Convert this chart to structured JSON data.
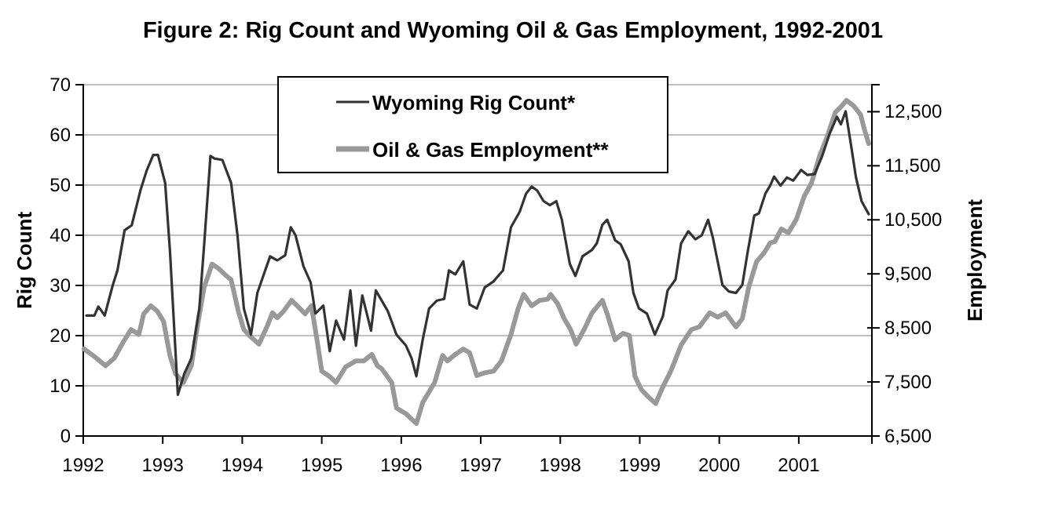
{
  "chart_data": {
    "type": "line",
    "title": "Figure 2: Rig Count and Wyoming Oil & Gas Employment, 1992-2001",
    "ylabel": "Rig Count",
    "y2label": "Employment",
    "xlim": [
      1992,
      2001.92
    ],
    "xticks": [
      1992,
      1993,
      1994,
      1995,
      1996,
      1997,
      1998,
      1999,
      2000,
      2001
    ],
    "ylim": [
      0,
      70
    ],
    "yticks": [
      0,
      10,
      20,
      30,
      40,
      50,
      60,
      70
    ],
    "y2lim": [
      6500,
      13000
    ],
    "y2ticks": [
      {
        "value": 6500,
        "label": "6,500"
      },
      {
        "value": 7500,
        "label": "7,500"
      },
      {
        "value": 8500,
        "label": "8,500"
      },
      {
        "value": 9500,
        "label": "9,500"
      },
      {
        "value": 10500,
        "label": "10,500"
      },
      {
        "value": 11500,
        "label": "11,500"
      },
      {
        "value": 12500,
        "label": "12,500"
      }
    ],
    "grid": "y",
    "legend": "top",
    "series": [
      {
        "name": "Wyoming Rig Count*",
        "color": "#333333",
        "x": [
          1992.04,
          1992.14,
          1992.19,
          1992.27,
          1992.37,
          1992.43,
          1992.52,
          1992.61,
          1992.72,
          1992.8,
          1992.88,
          1992.94,
          1993.03,
          1993.09,
          1993.19,
          1993.27,
          1993.36,
          1993.46,
          1993.52,
          1993.6,
          1993.65,
          1993.75,
          1993.86,
          1993.94,
          1994.02,
          1994.11,
          1994.19,
          1994.35,
          1994.44,
          1994.54,
          1994.61,
          1994.67,
          1994.77,
          1994.86,
          1994.92,
          1995.02,
          1995.1,
          1995.18,
          1995.28,
          1995.36,
          1995.43,
          1995.51,
          1995.62,
          1995.68,
          1995.83,
          1995.94,
          1996.06,
          1996.13,
          1996.19,
          1996.27,
          1996.35,
          1996.45,
          1996.54,
          1996.6,
          1996.68,
          1996.78,
          1996.86,
          1996.95,
          1997.05,
          1997.16,
          1997.28,
          1997.38,
          1997.49,
          1997.57,
          1997.64,
          1997.71,
          1997.79,
          1997.87,
          1997.95,
          1998.02,
          1998.12,
          1998.19,
          1998.28,
          1998.4,
          1998.46,
          1998.53,
          1998.59,
          1998.69,
          1998.76,
          1998.86,
          1998.92,
          1998.99,
          1999.09,
          1999.19,
          1999.29,
          1999.35,
          1999.45,
          1999.52,
          1999.61,
          1999.7,
          1999.78,
          1999.86,
          1999.92,
          1999.98,
          2000.04,
          2000.12,
          2000.21,
          2000.29,
          2000.36,
          2000.44,
          2000.5,
          2000.58,
          2000.64,
          2000.69,
          2000.77,
          2000.85,
          2000.93,
          2001.03,
          2001.11,
          2001.2,
          2001.29,
          2001.39,
          2001.48,
          2001.53,
          2001.59,
          2001.66,
          2001.72,
          2001.79,
          2001.88
        ],
        "values": [
          24,
          24,
          25.8,
          24,
          30,
          33,
          41,
          42,
          49,
          53,
          56,
          56,
          50.4,
          37,
          8.2,
          12.4,
          15.5,
          25.4,
          38,
          55.8,
          55.3,
          55,
          50.4,
          40,
          25.4,
          20.2,
          28.5,
          35.8,
          35,
          36,
          41.6,
          40,
          33.8,
          30.6,
          24.4,
          26,
          16.9,
          23,
          19.2,
          29,
          18,
          28,
          21,
          29,
          24.9,
          20.2,
          18,
          15.5,
          11.9,
          19.2,
          25.4,
          27,
          27.3,
          33,
          32.2,
          34.8,
          26.2,
          25.4,
          29.6,
          30.8,
          33,
          41.6,
          44.7,
          48.3,
          49.7,
          48.9,
          46.8,
          46,
          46.8,
          43.1,
          34.3,
          31.9,
          35.8,
          37.1,
          38.4,
          42.1,
          43.1,
          39,
          38.2,
          34.8,
          28.5,
          25.4,
          24.4,
          20.2,
          23.8,
          29,
          31.2,
          38.4,
          40.8,
          39.2,
          40,
          43.1,
          39.5,
          34.8,
          30.1,
          28.8,
          28.5,
          30.1,
          36.9,
          43.9,
          44.4,
          48.3,
          49.9,
          51.7,
          49.9,
          51.5,
          50.9,
          53,
          52,
          52.2,
          55.6,
          60.3,
          63.6,
          62.1,
          64.7,
          57.7,
          51.5,
          46.8,
          44.2
        ]
      },
      {
        "name": "Oil & Gas Employment**",
        "color": "#999999",
        "axis": "y2",
        "x": [
          1992.01,
          1992.14,
          1992.28,
          1992.39,
          1992.5,
          1992.6,
          1992.7,
          1992.76,
          1992.85,
          1992.93,
          1993.01,
          1993.09,
          1993.16,
          1993.26,
          1993.36,
          1993.44,
          1993.52,
          1993.62,
          1993.71,
          1993.78,
          1993.86,
          1993.95,
          1994.02,
          1994.11,
          1994.21,
          1994.31,
          1994.38,
          1994.44,
          1994.52,
          1994.62,
          1994.71,
          1994.79,
          1994.87,
          1994.94,
          1995,
          1995.1,
          1995.18,
          1995.3,
          1995.43,
          1995.53,
          1995.63,
          1995.7,
          1995.75,
          1995.88,
          1995.94,
          1996.06,
          1996.19,
          1996.27,
          1996.42,
          1996.52,
          1996.58,
          1996.68,
          1996.78,
          1996.86,
          1996.95,
          1997.05,
          1997.16,
          1997.26,
          1997.38,
          1997.47,
          1997.54,
          1997.64,
          1997.74,
          1997.84,
          1997.88,
          1997.97,
          1998.05,
          1998.13,
          1998.2,
          1998.3,
          1998.4,
          1998.53,
          1998.59,
          1998.69,
          1998.79,
          1998.87,
          1998.94,
          1999.02,
          1999.11,
          1999.2,
          1999.29,
          1999.39,
          1999.52,
          1999.65,
          1999.75,
          1999.88,
          1999.98,
          2000.08,
          2000.21,
          2000.29,
          2000.37,
          2000.47,
          2000.56,
          2000.64,
          2000.7,
          2000.78,
          2000.87,
          2000.97,
          2001.07,
          2001.16,
          2001.26,
          2001.36,
          2001.46,
          2001.53,
          2001.6,
          2001.69,
          2001.78,
          2001.82,
          2001.88
        ],
        "values": [
          8110,
          7970,
          7800,
          7940,
          8230,
          8470,
          8380,
          8760,
          8910,
          8810,
          8620,
          7990,
          7650,
          7490,
          7800,
          8570,
          9250,
          9680,
          9590,
          9490,
          9390,
          8810,
          8470,
          8330,
          8200,
          8520,
          8780,
          8690,
          8810,
          9010,
          8880,
          8760,
          8910,
          8280,
          7700,
          7600,
          7490,
          7780,
          7890,
          7890,
          8010,
          7800,
          7750,
          7490,
          7020,
          6910,
          6730,
          7120,
          7490,
          7990,
          7890,
          8010,
          8110,
          8040,
          7620,
          7670,
          7700,
          7890,
          8380,
          8860,
          9120,
          8910,
          9010,
          9030,
          9120,
          8940,
          8670,
          8470,
          8200,
          8470,
          8780,
          9010,
          8760,
          8280,
          8400,
          8360,
          7600,
          7360,
          7220,
          7100,
          7410,
          7700,
          8180,
          8470,
          8520,
          8780,
          8700,
          8780,
          8520,
          8670,
          9250,
          9730,
          9880,
          10070,
          10100,
          10330,
          10260,
          10510,
          10940,
          11180,
          11670,
          12050,
          12490,
          12590,
          12710,
          12610,
          12440,
          12200,
          11910
        ]
      }
    ]
  }
}
